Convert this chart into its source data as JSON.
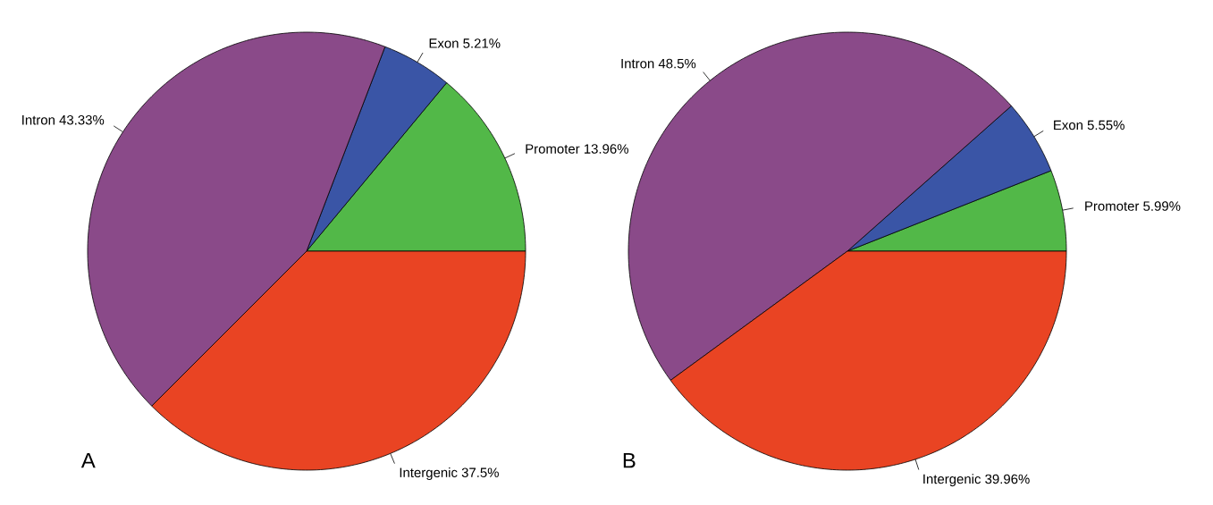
{
  "chart_data": [
    {
      "type": "pie",
      "title": "A",
      "categories": [
        "Promoter",
        "Exon",
        "Intron",
        "Intergenic"
      ],
      "values": [
        13.96,
        5.21,
        43.33,
        37.5
      ],
      "value_labels": [
        "13.96%",
        "5.21%",
        "43.33%",
        "37.5%"
      ],
      "colors": [
        "#52b848",
        "#3a55a6",
        "#8a4a89",
        "#e94423"
      ]
    },
    {
      "type": "pie",
      "title": "B",
      "categories": [
        "Promoter",
        "Exon",
        "Intron",
        "Intergenic"
      ],
      "values": [
        5.99,
        5.55,
        48.5,
        39.96
      ],
      "value_labels": [
        "5.99%",
        "5.55%",
        "48.5%",
        "39.96%"
      ],
      "colors": [
        "#52b848",
        "#3a55a6",
        "#8a4a89",
        "#e94423"
      ]
    }
  ]
}
